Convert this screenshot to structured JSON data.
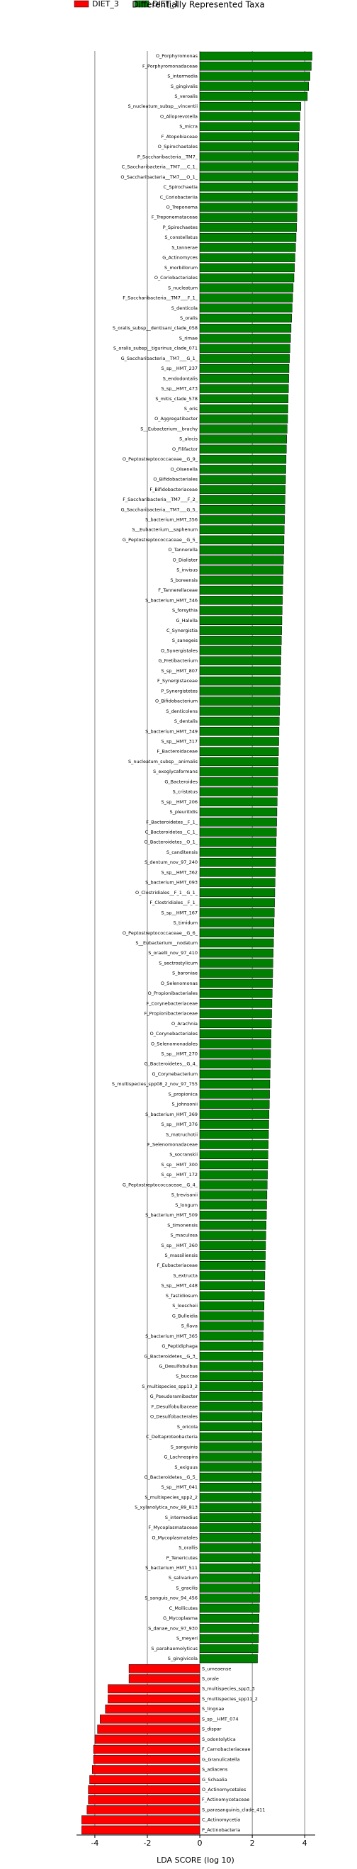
{
  "chart_data": {
    "type": "barh",
    "title": "Differentially Represented Taxa",
    "xlabel": "LDA SCORE (log 10)",
    "xlim": [
      -4.7,
      4.4
    ],
    "xticks": [
      -4,
      -2,
      0,
      2,
      4
    ],
    "grid": true,
    "legend": "top-left",
    "series": [
      {
        "name": "DIET_1",
        "color": "#008000",
        "categories": [
          "O_Porphyromonas",
          "F_Porphyromonadaceae",
          "S_intermedia",
          "S_gingivalis",
          "S_veroalis",
          "S_nucleatum_subsp__vincentii",
          "O_Alloprevotella",
          "S_micra",
          "F_Atopobiaceae",
          "O_Spirochaetales",
          "P_Saccharibacteria__TM7_",
          "C_Saccharibacteria__TM7___C_1_",
          "O_Saccharibacteria__TM7___O_1_",
          "C_Spirochaetia",
          "C_Coriobacteriia",
          "O_Treponema",
          "F_Treponemataceae",
          "P_Spirochaetes",
          "S_constellatus",
          "S_tannerae",
          "G_Actinomyces",
          "S_morbillorum",
          "O_Coriobacteriales",
          "S_nucleatum",
          "F_Saccharibacteria__TM7___F_1_",
          "S_denticola",
          "S_oralis",
          "S_oralis_subsp__dentisani_clade_058",
          "S_rimae",
          "S_oralis_subsp__tigurinus_clade_071",
          "G_Saccharibacteria__TM7___G_1_",
          "S_sp__HMT_237",
          "S_endodontalis",
          "S_sp__HMT_473",
          "S_mitis_clade_578",
          "S_oris",
          "O_Aggregatibacter",
          "S__Eubacterium__brachy",
          "S_alocis",
          "O_Filifactor",
          "O_Peptostreptococcaceae__G_9_",
          "O_Olsenella",
          "O_Bifidobacteriales",
          "F_Bifidobacteriaceae",
          "F_Saccharibacteria__TM7___F_2_",
          "G_Saccharibacteria__TM7___G_5_",
          "S_bacterium_HMT_356",
          "S__Eubacterium__saphenum",
          "G_Peptostreptococcaceae__G_5_",
          "O_Tannerella",
          "O_Dialister",
          "S_invisus",
          "S_boreensis",
          "F_Tannerellaceae",
          "S_bacterium_HMT_346",
          "S_forsythia",
          "G_Halella",
          "C_Synergistia",
          "S_sanegeis",
          "O_Synergistales",
          "G_Fretibacterium",
          "S_sp__HMT_807",
          "F_Synergistaceae",
          "P_Synergistetes",
          "O_Bifidobacterium",
          "S_denticolens",
          "S_dentalis",
          "S_bacterium_HMT_349",
          "S_sp__HMT_317",
          "F_Bacteroidaceae",
          "S_nucleatum_subsp__animalis",
          "S_exoglycaformans",
          "G_Bacteroides",
          "S_cristatus",
          "S_sp__HMT_206",
          "S_pleuritidis",
          "F_Bacteroidetes__F_1_",
          "C_Bacteroidetes__C_1_",
          "O_Bacteroidetes__O_1_",
          "S_canditensis",
          "S_dentum_nov_97_240",
          "S_sp__HMT_362",
          "S_bacterium_HMT_093",
          "O_Clostridiales__F_1__G_1_",
          "F_Clostridiales__F_1_",
          "S_sp__HMT_167",
          "S_timidum",
          "O_Peptostreptococcaceae__G_6_",
          "S__Eubacterium__nodatum",
          "S_oraelli_nov_97_410",
          "S_sectrostylicum",
          "S_baroniae",
          "O_Selenomonas",
          "O_Propionibacteriales",
          "F_Corynebacteriaceae",
          "F_Propionibacteriaceae",
          "O_Arachnia",
          "O_Corynebacteriales",
          "O_Selenomonadales",
          "S_sp__HMT_270",
          "G_Bacteroidetes__G_4_",
          "G_Corynebacterium",
          "S_multispecies_spp08_2_nov_97_755",
          "S_propionica",
          "S_johnsonii",
          "S_bacterium_HMT_369",
          "S_sp__HMT_376",
          "S_matruchotii",
          "F_Selenomonadaceae",
          "S_socranskii",
          "S_sp__HMT_300",
          "S_sp__HMT_172",
          "G_Peptostreptococcaceae__G_4_",
          "S_trevisanii",
          "S_longum",
          "S_bacterium_HMT_509",
          "S_timonensis",
          "S_maculosa",
          "S_sp__HMT_360",
          "S_massiliensis",
          "F_Eubacteriaceae",
          "S_extructa",
          "S_sp__HMT_448",
          "S_fastidiosum",
          "S_loescheii",
          "G_Bulleidia",
          "S_flava",
          "S_bacterium_HMT_365",
          "G_Peptidiphaga",
          "G_Bacteroidetes__G_3_",
          "G_Desulfobulbus",
          "S_buccae",
          "S_multispecies_spp13_2",
          "G_Pseudoramibacter",
          "F_Desulfobulbaceae",
          "O_Desulfobacterales",
          "S_oricola",
          "C_Deltaproteobacteria",
          "S_sanguinis",
          "G_Lachnospira",
          "S_exiguus",
          "G_Bacteroidetes__G_5_",
          "S_sp__HMT_041",
          "S_multispecies_spp2_2",
          "S_xylanolytica_nov_89_813",
          "S_intermedius",
          "F_Mycoplasmataceae",
          "O_Mycoplasmatales",
          "S_orallis",
          "P_Tenericutes",
          "S_bacterium_HMT_511",
          "S_salivarium",
          "S_gracilis",
          "S_sanguis_nov_94_456",
          "C_Mollicutes",
          "G_Mycoplasma",
          "S_danae_nov_97_930",
          "S_meyeri",
          "S_parahaemolyticus",
          "S_gingivicola"
        ],
        "values": [
          4.28,
          4.25,
          4.2,
          4.15,
          4.1,
          3.85,
          3.82,
          3.8,
          3.78,
          3.77,
          3.76,
          3.75,
          3.74,
          3.73,
          3.72,
          3.71,
          3.7,
          3.69,
          3.67,
          3.65,
          3.63,
          3.61,
          3.59,
          3.56,
          3.54,
          3.52,
          3.5,
          3.48,
          3.46,
          3.44,
          3.42,
          3.4,
          3.39,
          3.38,
          3.37,
          3.36,
          3.35,
          3.33,
          3.31,
          3.3,
          3.29,
          3.28,
          3.27,
          3.26,
          3.25,
          3.24,
          3.23,
          3.22,
          3.21,
          3.2,
          3.19,
          3.18,
          3.17,
          3.16,
          3.15,
          3.14,
          3.13,
          3.12,
          3.11,
          3.1,
          3.09,
          3.08,
          3.07,
          3.06,
          3.05,
          3.04,
          3.03,
          3.02,
          3.01,
          3.0,
          2.99,
          2.98,
          2.97,
          2.96,
          2.95,
          2.94,
          2.93,
          2.92,
          2.91,
          2.9,
          2.89,
          2.88,
          2.87,
          2.86,
          2.85,
          2.84,
          2.83,
          2.82,
          2.81,
          2.8,
          2.79,
          2.78,
          2.77,
          2.76,
          2.75,
          2.74,
          2.73,
          2.72,
          2.71,
          2.7,
          2.69,
          2.68,
          2.67,
          2.66,
          2.65,
          2.64,
          2.63,
          2.62,
          2.61,
          2.6,
          2.59,
          2.58,
          2.57,
          2.56,
          2.55,
          2.54,
          2.53,
          2.52,
          2.51,
          2.5,
          2.49,
          2.48,
          2.47,
          2.46,
          2.45,
          2.44,
          2.43,
          2.42,
          2.41,
          2.4,
          2.4,
          2.39,
          2.39,
          2.38,
          2.38,
          2.37,
          2.37,
          2.36,
          2.36,
          2.35,
          2.35,
          2.34,
          2.34,
          2.33,
          2.33,
          2.32,
          2.32,
          2.31,
          2.31,
          2.3,
          2.3,
          2.29,
          2.29,
          2.28,
          2.27,
          2.26,
          2.25,
          2.24,
          2.22,
          2.2
        ]
      },
      {
        "name": "DIET_3",
        "color": "#ff0000",
        "categories": [
          "S_umeaense",
          "S_orale",
          "S_multispecies_spp3_3",
          "S_multispecies_spp11_2",
          "S_lingnae",
          "S_sp__HMT_074",
          "S_dispar",
          "S_odontolytica",
          "F_Carnobacteriaceae",
          "G_Granulicatella",
          "S_adiacens",
          "G_Schaalia",
          "O_Actinomycetales",
          "F_Actinomycetaceae",
          "S_parasanguinis_clade_411",
          "C_Actinomycetia",
          "P_Actinobacteria"
        ],
        "values": [
          -2.7,
          -2.7,
          -3.5,
          -3.5,
          -3.6,
          -3.8,
          -3.9,
          -4.0,
          -4.05,
          -4.05,
          -4.1,
          -4.2,
          -4.25,
          -4.25,
          -4.3,
          -4.5,
          -4.5
        ]
      }
    ]
  }
}
